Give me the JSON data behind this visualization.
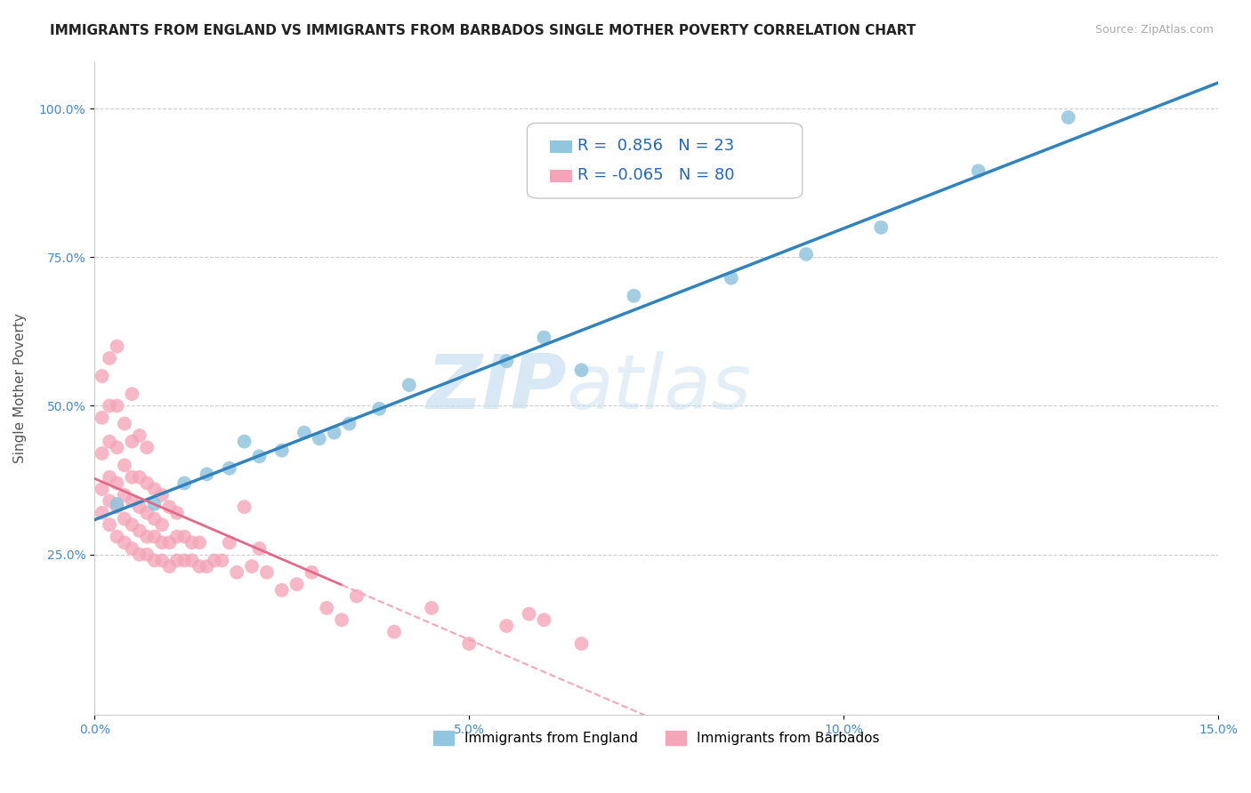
{
  "title": "IMMIGRANTS FROM ENGLAND VS IMMIGRANTS FROM BARBADOS SINGLE MOTHER POVERTY CORRELATION CHART",
  "source": "Source: ZipAtlas.com",
  "ylabel_label": "Single Mother Poverty",
  "xlim": [
    0.0,
    0.15
  ],
  "ylim": [
    -0.02,
    1.08
  ],
  "xticks": [
    0.0,
    0.05,
    0.1,
    0.15
  ],
  "xtick_labels": [
    "0.0%",
    "5.0%",
    "10.0%",
    "15.0%"
  ],
  "yticks": [
    0.25,
    0.5,
    0.75,
    1.0
  ],
  "ytick_labels": [
    "25.0%",
    "50.0%",
    "75.0%",
    "100.0%"
  ],
  "watermark_zip": "ZIP",
  "watermark_atlas": "atlas",
  "legend_england_r": "0.856",
  "legend_england_n": "23",
  "legend_barbados_r": "-0.065",
  "legend_barbados_n": "80",
  "england_color": "#92c5de",
  "barbados_color": "#f4a6b8",
  "england_line_color": "#3182bd",
  "barbados_line_solid_color": "#e3698a",
  "barbados_line_dash_color": "#f4a6b8",
  "england_x": [
    0.003,
    0.008,
    0.012,
    0.015,
    0.018,
    0.02,
    0.022,
    0.025,
    0.028,
    0.03,
    0.032,
    0.034,
    0.038,
    0.042,
    0.055,
    0.06,
    0.065,
    0.072,
    0.085,
    0.095,
    0.105,
    0.118,
    0.13
  ],
  "england_y": [
    0.335,
    0.335,
    0.37,
    0.385,
    0.395,
    0.44,
    0.415,
    0.425,
    0.455,
    0.445,
    0.455,
    0.47,
    0.495,
    0.535,
    0.575,
    0.615,
    0.56,
    0.685,
    0.715,
    0.755,
    0.8,
    0.895,
    0.985
  ],
  "barbados_x": [
    0.001,
    0.001,
    0.001,
    0.001,
    0.001,
    0.002,
    0.002,
    0.002,
    0.002,
    0.002,
    0.002,
    0.003,
    0.003,
    0.003,
    0.003,
    0.003,
    0.003,
    0.004,
    0.004,
    0.004,
    0.004,
    0.004,
    0.005,
    0.005,
    0.005,
    0.005,
    0.005,
    0.005,
    0.006,
    0.006,
    0.006,
    0.006,
    0.006,
    0.007,
    0.007,
    0.007,
    0.007,
    0.007,
    0.008,
    0.008,
    0.008,
    0.008,
    0.009,
    0.009,
    0.009,
    0.009,
    0.01,
    0.01,
    0.01,
    0.011,
    0.011,
    0.011,
    0.012,
    0.012,
    0.013,
    0.013,
    0.014,
    0.014,
    0.015,
    0.016,
    0.017,
    0.018,
    0.019,
    0.02,
    0.021,
    0.022,
    0.023,
    0.025,
    0.027,
    0.029,
    0.031,
    0.033,
    0.035,
    0.04,
    0.045,
    0.05,
    0.055,
    0.058,
    0.06,
    0.065
  ],
  "barbados_y": [
    0.32,
    0.36,
    0.42,
    0.48,
    0.55,
    0.3,
    0.34,
    0.38,
    0.44,
    0.5,
    0.58,
    0.28,
    0.33,
    0.37,
    0.43,
    0.5,
    0.6,
    0.27,
    0.31,
    0.35,
    0.4,
    0.47,
    0.26,
    0.3,
    0.34,
    0.38,
    0.44,
    0.52,
    0.25,
    0.29,
    0.33,
    0.38,
    0.45,
    0.25,
    0.28,
    0.32,
    0.37,
    0.43,
    0.24,
    0.28,
    0.31,
    0.36,
    0.24,
    0.27,
    0.3,
    0.35,
    0.23,
    0.27,
    0.33,
    0.24,
    0.28,
    0.32,
    0.24,
    0.28,
    0.24,
    0.27,
    0.23,
    0.27,
    0.23,
    0.24,
    0.24,
    0.27,
    0.22,
    0.33,
    0.23,
    0.26,
    0.22,
    0.19,
    0.2,
    0.22,
    0.16,
    0.14,
    0.18,
    0.12,
    0.16,
    0.1,
    0.13,
    0.15,
    0.14,
    0.1
  ],
  "grid_color": "#cccccc",
  "background_color": "#ffffff",
  "title_fontsize": 11,
  "axis_label_fontsize": 11,
  "tick_fontsize": 10,
  "legend_fontsize": 13
}
